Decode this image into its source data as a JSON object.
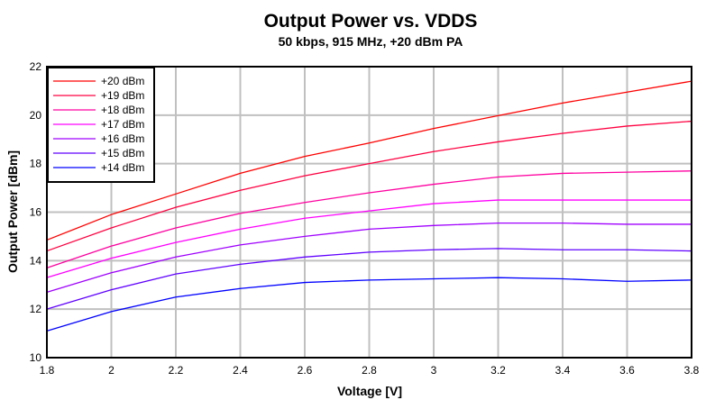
{
  "chart_data": {
    "type": "line",
    "title": "Output Power vs. VDDS",
    "subtitle": "50 kbps, 915 MHz, +20 dBm PA",
    "xlabel": "Voltage [V]",
    "ylabel": "Output Power [dBm]",
    "xlim": [
      1.8,
      3.8
    ],
    "ylim": [
      10,
      22
    ],
    "xticks": [
      1.8,
      2,
      2.2,
      2.4,
      2.6,
      2.8,
      3,
      3.2,
      3.4,
      3.6,
      3.8
    ],
    "yticks": [
      10,
      12,
      14,
      16,
      18,
      20,
      22
    ],
    "grid": true,
    "legend_position": "top-left",
    "x": [
      1.8,
      2.0,
      2.2,
      2.4,
      2.6,
      2.8,
      3.0,
      3.2,
      3.4,
      3.6,
      3.8
    ],
    "series": [
      {
        "name": "+20 dBm",
        "color": "#ff0000",
        "values": [
          14.85,
          15.9,
          16.75,
          17.6,
          18.3,
          18.85,
          19.45,
          19.98,
          20.5,
          20.95,
          21.4
        ]
      },
      {
        "name": "+19 dBm",
        "color": "#ff0040",
        "values": [
          14.4,
          15.35,
          16.2,
          16.9,
          17.5,
          18.0,
          18.5,
          18.9,
          19.25,
          19.55,
          19.75
        ]
      },
      {
        "name": "+18 dBm",
        "color": "#ff00a0",
        "values": [
          13.7,
          14.6,
          15.35,
          15.95,
          16.4,
          16.8,
          17.15,
          17.45,
          17.6,
          17.65,
          17.7
        ]
      },
      {
        "name": "+17 dBm",
        "color": "#ff00ff",
        "values": [
          13.3,
          14.1,
          14.75,
          15.3,
          15.75,
          16.05,
          16.35,
          16.5,
          16.5,
          16.5,
          16.5
        ]
      },
      {
        "name": "+16 dBm",
        "color": "#a000ff",
        "values": [
          12.7,
          13.5,
          14.15,
          14.65,
          15.0,
          15.3,
          15.45,
          15.55,
          15.55,
          15.5,
          15.5
        ]
      },
      {
        "name": "+15 dBm",
        "color": "#6000ff",
        "values": [
          12.0,
          12.8,
          13.45,
          13.85,
          14.15,
          14.35,
          14.45,
          14.5,
          14.45,
          14.45,
          14.4
        ]
      },
      {
        "name": "+14 dBm",
        "color": "#0000ff",
        "values": [
          11.1,
          11.9,
          12.5,
          12.85,
          13.1,
          13.2,
          13.25,
          13.3,
          13.25,
          13.15,
          13.2
        ]
      }
    ]
  }
}
